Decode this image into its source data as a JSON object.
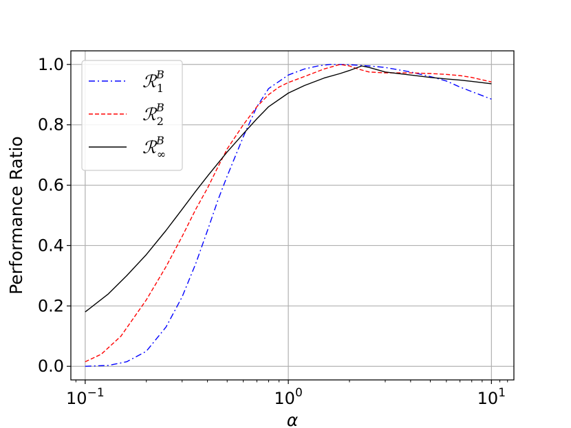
{
  "chart_data": {
    "type": "line",
    "xlabel": "α",
    "ylabel": "Performance Ratio",
    "xscale": "log",
    "xlim": [
      0.085,
      12.9
    ],
    "ylim": [
      -0.045,
      1.045
    ],
    "xticks": [
      {
        "value": 0.1,
        "base": "10",
        "exp": "−1"
      },
      {
        "value": 1,
        "base": "10",
        "exp": "0"
      },
      {
        "value": 10,
        "base": "10",
        "exp": "1"
      }
    ],
    "yticks": [
      "0.0",
      "0.2",
      "0.4",
      "0.6",
      "0.8",
      "1.0"
    ],
    "grid": true,
    "legend_position": "upper-left",
    "series": [
      {
        "name": "R_1^B",
        "label_base": "ℛ",
        "label_sup": "B",
        "label_sub": "1",
        "color": "#0000ff",
        "dash": "dashdot",
        "x": [
          0.1,
          0.13,
          0.16,
          0.2,
          0.25,
          0.3,
          0.35,
          0.4,
          0.45,
          0.5,
          0.6,
          0.7,
          0.8,
          1.0,
          1.2,
          1.4,
          1.6,
          1.8,
          2.0,
          2.5,
          3.0,
          4.0,
          5.0,
          6.0,
          7.0,
          8.0,
          10.0
        ],
        "y": [
          0.0,
          0.003,
          0.015,
          0.05,
          0.13,
          0.23,
          0.34,
          0.45,
          0.55,
          0.63,
          0.76,
          0.86,
          0.92,
          0.965,
          0.985,
          0.995,
          1.0,
          1.0,
          0.999,
          0.995,
          0.99,
          0.975,
          0.96,
          0.945,
          0.925,
          0.91,
          0.885
        ]
      },
      {
        "name": "R_2^B",
        "label_base": "ℛ",
        "label_sup": "B",
        "label_sub": "2",
        "color": "#ff0000",
        "dash": "dashed",
        "x": [
          0.1,
          0.12,
          0.15,
          0.2,
          0.25,
          0.3,
          0.35,
          0.4,
          0.45,
          0.5,
          0.6,
          0.7,
          0.8,
          0.9,
          1.0,
          1.2,
          1.5,
          1.8,
          2.0,
          2.2,
          2.5,
          3.0,
          4.0,
          5.0,
          6.0,
          7.0,
          8.0,
          10.0
        ],
        "y": [
          0.015,
          0.04,
          0.1,
          0.22,
          0.33,
          0.43,
          0.52,
          0.59,
          0.66,
          0.72,
          0.8,
          0.86,
          0.9,
          0.925,
          0.94,
          0.96,
          0.985,
          1.0,
          0.995,
          0.985,
          0.975,
          0.972,
          0.972,
          0.97,
          0.967,
          0.963,
          0.957,
          0.942
        ]
      },
      {
        "name": "R_∞^B",
        "label_base": "ℛ",
        "label_sup": "B",
        "label_sub": "∞",
        "color": "#000000",
        "dash": "solid",
        "x": [
          0.1,
          0.13,
          0.16,
          0.2,
          0.25,
          0.3,
          0.35,
          0.4,
          0.5,
          0.6,
          0.7,
          0.8,
          1.0,
          1.2,
          1.5,
          1.8,
          2.0,
          2.3,
          2.5,
          3.0,
          4.0,
          5.0,
          6.0,
          7.0,
          8.0,
          10.0
        ],
        "y": [
          0.18,
          0.24,
          0.3,
          0.37,
          0.45,
          0.52,
          0.58,
          0.63,
          0.71,
          0.77,
          0.82,
          0.86,
          0.905,
          0.93,
          0.955,
          0.97,
          0.98,
          0.995,
          0.99,
          0.975,
          0.965,
          0.957,
          0.952,
          0.948,
          0.944,
          0.936
        ]
      }
    ]
  }
}
